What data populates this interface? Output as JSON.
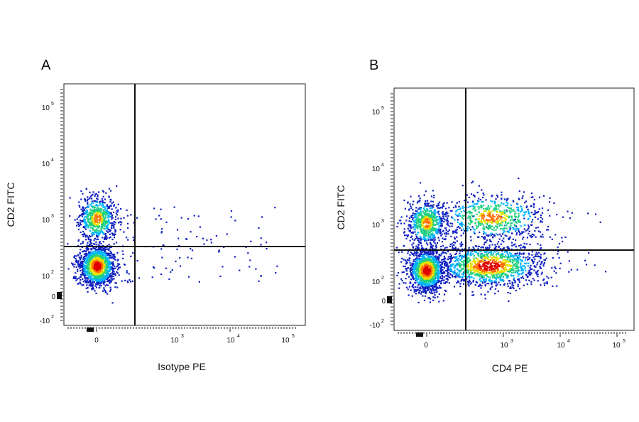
{
  "chart_data": [
    {
      "type": "scatter",
      "panel_label": "A",
      "xlabel": "Isotype PE",
      "ylabel": "CD2 FITC",
      "scale": "biexponential",
      "x_tick_labels": [
        {
          "base": "0",
          "exp": ""
        },
        {
          "base": "10",
          "exp": "3"
        },
        {
          "base": "10",
          "exp": "4"
        },
        {
          "base": "10",
          "exp": "5"
        }
      ],
      "y_tick_labels": [
        {
          "base": "-10",
          "exp": "2"
        },
        {
          "base": "0",
          "exp": ""
        },
        {
          "base": "10",
          "exp": "2"
        },
        {
          "base": "10",
          "exp": "3"
        },
        {
          "base": "10",
          "exp": "4"
        },
        {
          "base": "10",
          "exp": "5"
        }
      ],
      "gates": {
        "x": 300,
        "y": 300
      },
      "colormap": [
        "#1020c0",
        "#00b4ff",
        "#20d080",
        "#e8e000",
        "#ff7000",
        "#e00000"
      ],
      "clusters": [
        {
          "name": "CD2-negative",
          "x_center": 0,
          "y_center": 90,
          "density": "high"
        },
        {
          "name": "CD2-positive",
          "x_center": 0,
          "y_center": 700,
          "density": "medium"
        }
      ]
    },
    {
      "type": "scatter",
      "panel_label": "B",
      "xlabel": "CD4 PE",
      "ylabel": "CD2 FITC",
      "scale": "biexponential",
      "x_tick_labels": [
        {
          "base": "0",
          "exp": ""
        },
        {
          "base": "10",
          "exp": "3"
        },
        {
          "base": "10",
          "exp": "4"
        },
        {
          "base": "10",
          "exp": "5"
        }
      ],
      "y_tick_labels": [
        {
          "base": "-10",
          "exp": "2"
        },
        {
          "base": "0",
          "exp": ""
        },
        {
          "base": "10",
          "exp": "2"
        },
        {
          "base": "10",
          "exp": "3"
        },
        {
          "base": "10",
          "exp": "4"
        },
        {
          "base": "10",
          "exp": "5"
        }
      ],
      "gates": {
        "x": 300,
        "y": 300
      },
      "colormap": [
        "#1020c0",
        "#00b4ff",
        "#20d080",
        "#e8e000",
        "#ff7000",
        "#e00000"
      ],
      "clusters": [
        {
          "name": "CD4-negative CD2-negative",
          "x_center": 0,
          "y_center": 90,
          "density": "high"
        },
        {
          "name": "CD4-positive CD2-negative",
          "x_center": 900,
          "y_center": 110,
          "density": "high"
        },
        {
          "name": "CD4-negative CD2-positive",
          "x_center": 0,
          "y_center": 700,
          "density": "medium"
        },
        {
          "name": "CD4-positive CD2-positive",
          "x_center": 1000,
          "y_center": 900,
          "density": "medium"
        }
      ]
    }
  ]
}
